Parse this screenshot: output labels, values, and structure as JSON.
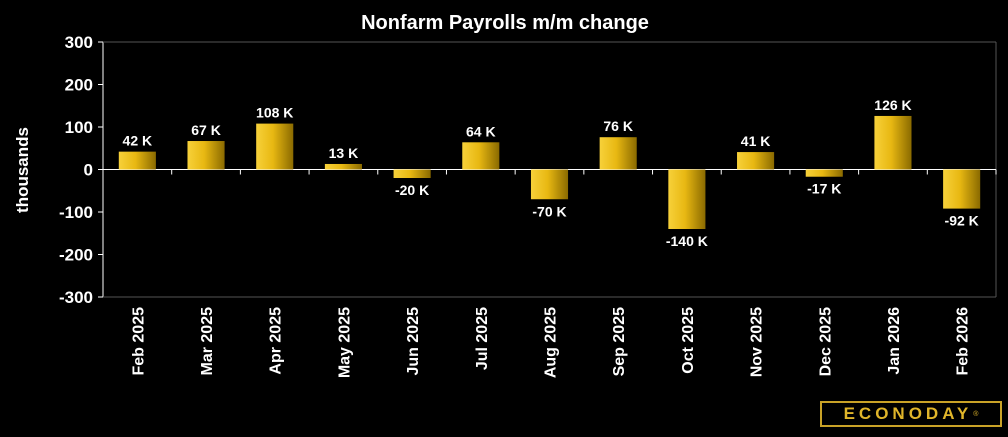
{
  "chart_data": {
    "type": "bar",
    "title": "Nonfarm Payrolls m/m change",
    "ylabel": "thousands",
    "xlabel": "",
    "ylim": [
      -300,
      300
    ],
    "yticks": [
      300,
      200,
      100,
      0,
      -100,
      -200,
      -300
    ],
    "categories": [
      "Feb 2025",
      "Mar 2025",
      "Apr 2025",
      "May 2025",
      "Jun 2025",
      "Jul 2025",
      "Aug 2025",
      "Sep 2025",
      "Oct 2025",
      "Nov 2025",
      "Dec 2025",
      "Jan 2026",
      "Feb 2026"
    ],
    "values": [
      42,
      67,
      108,
      13,
      -20,
      64,
      -70,
      76,
      -140,
      41,
      -17,
      126,
      -92
    ],
    "data_labels": [
      "42 K",
      "67 K",
      "108 K",
      "13 K",
      "-20 K",
      "64 K",
      "-70 K",
      "76 K",
      "-140 K",
      "41 K",
      "-17 K",
      "126 K",
      "-92 K"
    ],
    "grid": false,
    "legend": "none"
  },
  "colors": {
    "background": "#000000",
    "bar_light": "#f7d13a",
    "bar_dark": "#8a6a00",
    "text": "#ffffff",
    "axis": "#ffffff"
  },
  "brand": {
    "logo_text": "ECONODAY",
    "logo_mark": "®"
  }
}
